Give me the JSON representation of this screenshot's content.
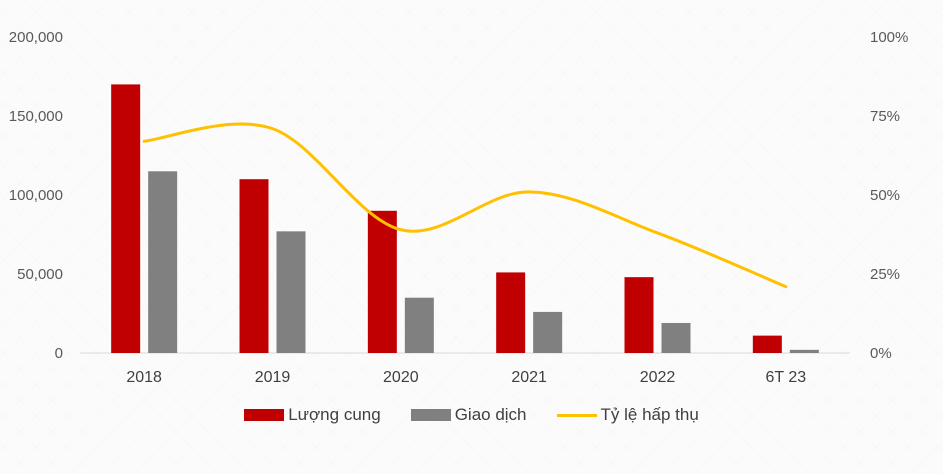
{
  "chart_data": {
    "type": "bar",
    "title": "",
    "xlabel": "",
    "ylabel": "",
    "categories": [
      "2018",
      "2019",
      "2020",
      "2021",
      "2022",
      "6T 23"
    ],
    "ylim": [
      0,
      200000
    ],
    "y_ticks": [
      "0",
      "50,000",
      "100,000",
      "150,000",
      "200,000"
    ],
    "y2lim": [
      0,
      100
    ],
    "y2_ticks": [
      "0%",
      "25%",
      "50%",
      "75%",
      "100%"
    ],
    "grid": false,
    "legend_position": "bottom",
    "series": [
      {
        "name": "Lượng cung",
        "type": "bar",
        "axis": "left",
        "color": "#c00000",
        "values": [
          170000,
          110000,
          90000,
          51000,
          48000,
          11000
        ]
      },
      {
        "name": "Giao dịch",
        "type": "bar",
        "axis": "left",
        "color": "#808080",
        "values": [
          115000,
          77000,
          35000,
          26000,
          19000,
          2000
        ]
      },
      {
        "name": "Tỷ lệ hấp thụ",
        "type": "line",
        "axis": "right",
        "color": "#ffc000",
        "values": [
          67,
          71,
          39,
          51,
          38,
          21
        ]
      }
    ]
  },
  "legend": {
    "supply": "Lượng cung",
    "transactions": "Giao dịch",
    "absorption": "Tỷ lệ hấp thụ"
  }
}
